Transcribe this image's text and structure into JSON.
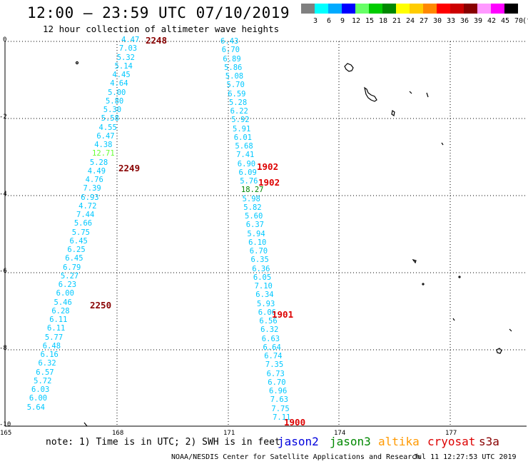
{
  "title": "12:00 – 23:59 UTC 07/10/2019",
  "subtitle": "12 hour collection of altimeter wave heights",
  "scale": {
    "unit": "(ft)",
    "labels": [
      "3",
      "6",
      "9",
      "12",
      "15",
      "18",
      "21",
      "24",
      "27",
      "30",
      "33",
      "36",
      "39",
      "42",
      "45",
      "70"
    ],
    "colors": [
      "#808080",
      "#00ffff",
      "#00aaff",
      "#0000ff",
      "#66ff66",
      "#00cc00",
      "#008800",
      "#ffff00",
      "#ffcc00",
      "#ff8800",
      "#ff0000",
      "#cc0000",
      "#880000",
      "#ff99ff",
      "#ff00ff",
      "#000000"
    ]
  },
  "axes": {
    "lat_labels": [
      "0",
      "-2",
      "-4",
      "-6",
      "-8",
      "-10"
    ],
    "lon_labels": [
      "165",
      "168",
      "171",
      "174",
      "177"
    ]
  },
  "track1": {
    "values": [
      "4.47",
      "7.03",
      "5.32",
      "5.14",
      "4.45",
      "4.64",
      "5.00",
      "5.80",
      "5.30",
      "5.58",
      "4.55",
      "6.47",
      "4.38",
      "12.71",
      "5.28",
      "4.49",
      "4.76",
      "7.39",
      "6.93",
      "4.72",
      "7.44",
      "5.66",
      "5.75",
      "6.45",
      "6.25",
      "6.45",
      "6.79",
      "5.27",
      "6.23",
      "6.00",
      "5.46",
      "6.28",
      "6.11",
      "6.11",
      "5.77",
      "6.48",
      "6.16",
      "6.32",
      "6.57",
      "5.72",
      "6.03",
      "6.00",
      "5.64"
    ],
    "colors": [
      "#00c8ff",
      "#00c8ff",
      "#00c8ff",
      "#00c8ff",
      "#00c8ff",
      "#00c8ff",
      "#00c8ff",
      "#00c8ff",
      "#00c8ff",
      "#00c8ff",
      "#00c8ff",
      "#00c8ff",
      "#00c8ff",
      "#66ff33",
      "#00c8ff",
      "#00c8ff",
      "#00c8ff",
      "#00c8ff",
      "#00c8ff",
      "#00c8ff",
      "#00c8ff",
      "#00c8ff",
      "#00c8ff",
      "#00c8ff",
      "#00c8ff",
      "#00c8ff",
      "#00c8ff",
      "#00c8ff",
      "#00c8ff",
      "#00c8ff",
      "#00c8ff",
      "#00c8ff",
      "#00c8ff",
      "#00c8ff",
      "#00c8ff",
      "#00c8ff",
      "#00c8ff",
      "#00c8ff",
      "#00c8ff",
      "#00c8ff",
      "#00c8ff",
      "#00c8ff",
      "#00c8ff"
    ]
  },
  "track2": {
    "values": [
      "6.43",
      "6.70",
      "6.89",
      "5.86",
      "5.08",
      "5.70",
      "6.59",
      "5.28",
      "6.22",
      "5.92",
      "5.91",
      "6.01",
      "5.68",
      "7.41",
      "6.90",
      "6.09",
      "5.76",
      "18.27",
      "5.98",
      "5.82",
      "5.60",
      "6.37",
      "5.94",
      "6.10",
      "6.70",
      "6.35",
      "6.36",
      "6.05",
      "7.10",
      "6.34",
      "5.93",
      "6.06",
      "6.56",
      "6.32",
      "6.63",
      "6.64",
      "6.74",
      "7.35",
      "6.73",
      "6.70",
      "6.96",
      "7.63",
      "7.75",
      "7.11"
    ],
    "colors": [
      "#00c8ff",
      "#00c8ff",
      "#00c8ff",
      "#00c8ff",
      "#00c8ff",
      "#00c8ff",
      "#00c8ff",
      "#00c8ff",
      "#00c8ff",
      "#00c8ff",
      "#00c8ff",
      "#00c8ff",
      "#00c8ff",
      "#00c8ff",
      "#00c8ff",
      "#00c8ff",
      "#00c8ff",
      "#008800",
      "#00c8ff",
      "#00c8ff",
      "#00c8ff",
      "#00c8ff",
      "#00c8ff",
      "#00c8ff",
      "#00c8ff",
      "#00c8ff",
      "#00c8ff",
      "#00c8ff",
      "#00c8ff",
      "#00c8ff",
      "#00c8ff",
      "#00c8ff",
      "#00c8ff",
      "#00c8ff",
      "#00c8ff",
      "#00c8ff",
      "#00c8ff",
      "#00c8ff",
      "#00c8ff",
      "#00c8ff",
      "#00c8ff",
      "#00c8ff",
      "#00c8ff",
      "#00c8ff"
    ]
  },
  "time_labels": [
    {
      "text": "2248",
      "color": "#880000"
    },
    {
      "text": "2249",
      "color": "#880000"
    },
    {
      "text": "2250",
      "color": "#880000"
    },
    {
      "text": "1902",
      "color": "#dd0000"
    },
    {
      "text": "1902",
      "color": "#dd0000"
    },
    {
      "text": "1901",
      "color": "#dd0000"
    },
    {
      "text": "1900",
      "color": "#dd0000"
    }
  ],
  "note": "note: 1) Time is in UTC; 2) SWH is in feet",
  "satellites": [
    {
      "name": "jason2",
      "color": "#0000dd"
    },
    {
      "name": "jason3",
      "color": "#008800"
    },
    {
      "name": "altika",
      "color": "#ff9900"
    },
    {
      "name": "cryosat",
      "color": "#dd0000"
    },
    {
      "name": "s3a",
      "color": "#880000"
    }
  ],
  "credit": "NOAA/NESDIS Center for Satellite Applications and Research",
  "timestamp": "Jul 11 12:27:53 UTC 2019"
}
